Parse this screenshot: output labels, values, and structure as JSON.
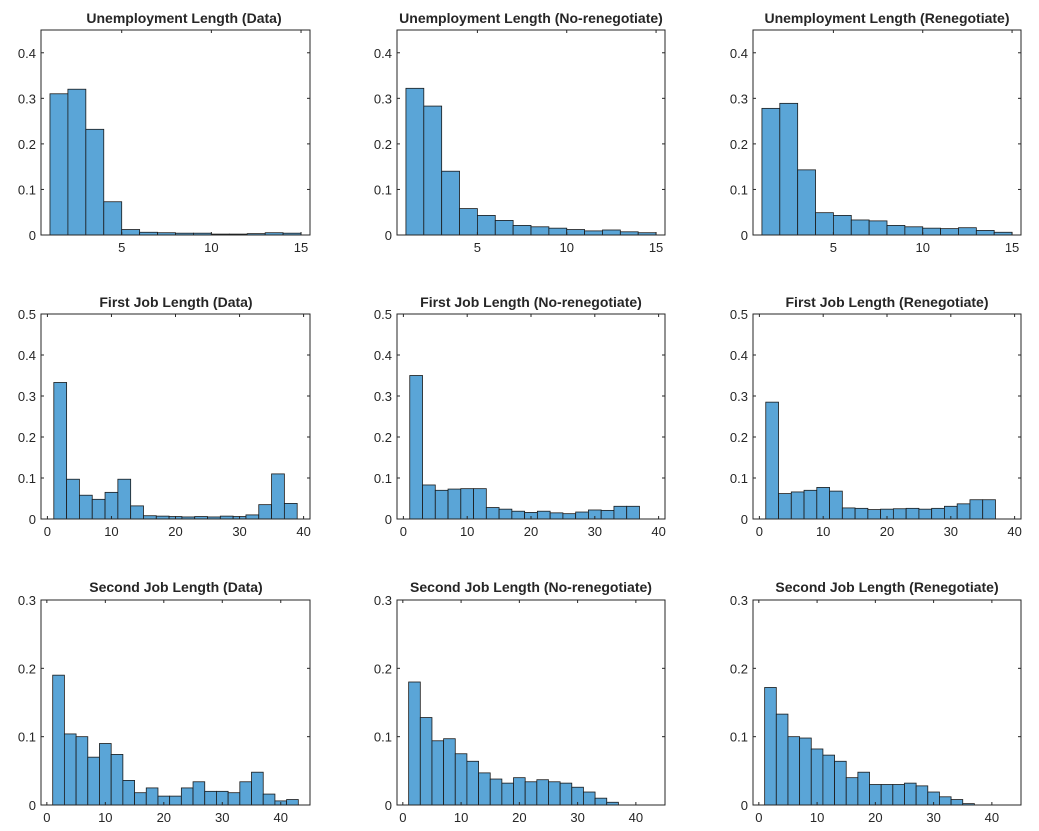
{
  "colors": {
    "bar_fill": "#5aa5d7",
    "bar_edge": "#1a1a1a",
    "axes": "#262626"
  },
  "chart_data": [
    {
      "type": "bar",
      "title": "Unemployment Length (Data)",
      "x": [
        1.5,
        2.5,
        3.5,
        4.5,
        5.5,
        6.5,
        7.5,
        8.5,
        9.5,
        10.5,
        11.5,
        12.5,
        13.5,
        14.5
      ],
      "values": [
        0.31,
        0.32,
        0.232,
        0.073,
        0.012,
        0.006,
        0.005,
        0.004,
        0.004,
        0.002,
        0.002,
        0.003,
        0.005,
        0.004
      ],
      "bin_width": 1,
      "xlim": [
        0.5,
        15.5
      ],
      "ylim": [
        0,
        0.45
      ],
      "xticks": [
        5,
        10,
        15
      ],
      "yticks": [
        0,
        0.1,
        0.2,
        0.3,
        0.4
      ],
      "xtick_labels": [
        "5",
        "10",
        "15"
      ],
      "ytick_labels": [
        "0",
        "0.1",
        "0.2",
        "0.3",
        "0.4"
      ]
    },
    {
      "type": "bar",
      "title": "Unemployment Length (No-renegotiate)",
      "x": [
        1.5,
        2.5,
        3.5,
        4.5,
        5.5,
        6.5,
        7.5,
        8.5,
        9.5,
        10.5,
        11.5,
        12.5,
        13.5,
        14.5
      ],
      "values": [
        0.322,
        0.283,
        0.14,
        0.058,
        0.043,
        0.032,
        0.021,
        0.018,
        0.015,
        0.012,
        0.009,
        0.011,
        0.007,
        0.005
      ],
      "bin_width": 1,
      "xlim": [
        0.5,
        15.5
      ],
      "ylim": [
        0,
        0.45
      ],
      "xticks": [
        5,
        10,
        15
      ],
      "yticks": [
        0,
        0.1,
        0.2,
        0.3,
        0.4
      ],
      "xtick_labels": [
        "5",
        "10",
        "15"
      ],
      "ytick_labels": [
        "0",
        "0.1",
        "0.2",
        "0.3",
        "0.4"
      ]
    },
    {
      "type": "bar",
      "title": "Unemployment Length (Renegotiate)",
      "x": [
        1.5,
        2.5,
        3.5,
        4.5,
        5.5,
        6.5,
        7.5,
        8.5,
        9.5,
        10.5,
        11.5,
        12.5,
        13.5,
        14.5
      ],
      "values": [
        0.278,
        0.289,
        0.143,
        0.049,
        0.043,
        0.033,
        0.031,
        0.021,
        0.018,
        0.015,
        0.014,
        0.016,
        0.01,
        0.006
      ],
      "bin_width": 1,
      "xlim": [
        0.5,
        15.5
      ],
      "ylim": [
        0,
        0.45
      ],
      "xticks": [
        5,
        10,
        15
      ],
      "yticks": [
        0,
        0.1,
        0.2,
        0.3,
        0.4
      ],
      "xtick_labels": [
        "5",
        "10",
        "15"
      ],
      "ytick_labels": [
        "0",
        "0.1",
        "0.2",
        "0.3",
        "0.4"
      ]
    },
    {
      "type": "bar",
      "title": "First Job Length (Data)",
      "x": [
        2,
        4,
        6,
        8,
        10,
        12,
        14,
        16,
        18,
        20,
        22,
        24,
        26,
        28,
        30,
        32,
        34,
        36,
        38
      ],
      "values": [
        0.333,
        0.097,
        0.058,
        0.048,
        0.065,
        0.097,
        0.032,
        0.008,
        0.007,
        0.006,
        0.005,
        0.006,
        0.005,
        0.007,
        0.006,
        0.01,
        0.035,
        0.11,
        0.038
      ],
      "bin_width": 2,
      "xlim": [
        -1,
        41
      ],
      "ylim": [
        0,
        0.5
      ],
      "xticks": [
        0,
        10,
        20,
        30,
        40
      ],
      "yticks": [
        0,
        0.1,
        0.2,
        0.3,
        0.4,
        0.5
      ],
      "xtick_labels": [
        "0",
        "10",
        "20",
        "30",
        "40"
      ],
      "ytick_labels": [
        "0",
        "0.1",
        "0.2",
        "0.3",
        "0.4",
        "0.5"
      ]
    },
    {
      "type": "bar",
      "title": "First Job Length (No-renegotiate)",
      "x": [
        2,
        4,
        6,
        8,
        10,
        12,
        14,
        16,
        18,
        20,
        22,
        24,
        26,
        28,
        30,
        32,
        34,
        36
      ],
      "values": [
        0.35,
        0.083,
        0.07,
        0.073,
        0.074,
        0.074,
        0.028,
        0.024,
        0.019,
        0.016,
        0.019,
        0.015,
        0.013,
        0.017,
        0.022,
        0.021,
        0.031,
        0.031
      ],
      "bin_width": 2,
      "xlim": [
        -1,
        41
      ],
      "ylim": [
        0,
        0.5
      ],
      "xticks": [
        0,
        10,
        20,
        30,
        40
      ],
      "yticks": [
        0,
        0.1,
        0.2,
        0.3,
        0.4,
        0.5
      ],
      "xtick_labels": [
        "0",
        "10",
        "20",
        "30",
        "40"
      ],
      "ytick_labels": [
        "0",
        "0.1",
        "0.2",
        "0.3",
        "0.4",
        "0.5"
      ]
    },
    {
      "type": "bar",
      "title": "First Job Length (Renegotiate)",
      "x": [
        2,
        4,
        6,
        8,
        10,
        12,
        14,
        16,
        18,
        20,
        22,
        24,
        26,
        28,
        30,
        32,
        34,
        36
      ],
      "values": [
        0.285,
        0.062,
        0.066,
        0.07,
        0.077,
        0.068,
        0.027,
        0.026,
        0.023,
        0.024,
        0.025,
        0.026,
        0.024,
        0.026,
        0.031,
        0.037,
        0.047,
        0.047
      ],
      "bin_width": 2,
      "xlim": [
        -1,
        41
      ],
      "ylim": [
        0,
        0.5
      ],
      "xticks": [
        0,
        10,
        20,
        30,
        40
      ],
      "yticks": [
        0,
        0.1,
        0.2,
        0.3,
        0.4,
        0.5
      ],
      "xtick_labels": [
        "0",
        "10",
        "20",
        "30",
        "40"
      ],
      "ytick_labels": [
        "0",
        "0.1",
        "0.2",
        "0.3",
        "0.4",
        "0.5"
      ]
    },
    {
      "type": "bar",
      "title": "Second Job Length (Data)",
      "x": [
        2,
        4,
        6,
        8,
        10,
        12,
        14,
        16,
        18,
        20,
        22,
        24,
        26,
        28,
        30,
        32,
        34,
        36,
        38,
        40,
        42
      ],
      "values": [
        0.19,
        0.104,
        0.1,
        0.07,
        0.09,
        0.074,
        0.036,
        0.018,
        0.025,
        0.013,
        0.013,
        0.025,
        0.034,
        0.02,
        0.02,
        0.018,
        0.034,
        0.048,
        0.016,
        0.006,
        0.008
      ],
      "bin_width": 2,
      "xlim": [
        -1,
        45
      ],
      "ylim": [
        0,
        0.3
      ],
      "xticks": [
        0,
        10,
        20,
        30,
        40
      ],
      "yticks": [
        0,
        0.1,
        0.2,
        0.3
      ],
      "xtick_labels": [
        "0",
        "10",
        "20",
        "30",
        "40"
      ],
      "ytick_labels": [
        "0",
        "0.1",
        "0.2",
        "0.3"
      ]
    },
    {
      "type": "bar",
      "title": "Second Job Length (No-renegotiate)",
      "x": [
        2,
        4,
        6,
        8,
        10,
        12,
        14,
        16,
        18,
        20,
        22,
        24,
        26,
        28,
        30,
        32,
        34,
        36,
        38,
        40,
        42
      ],
      "values": [
        0.18,
        0.128,
        0.094,
        0.097,
        0.075,
        0.064,
        0.047,
        0.038,
        0.032,
        0.04,
        0.034,
        0.037,
        0.034,
        0.032,
        0.026,
        0.019,
        0.01,
        0.004,
        0,
        0,
        0
      ],
      "bin_width": 2,
      "xlim": [
        -1,
        45
      ],
      "ylim": [
        0,
        0.3
      ],
      "xticks": [
        0,
        10,
        20,
        30,
        40
      ],
      "yticks": [
        0,
        0.1,
        0.2,
        0.3
      ],
      "xtick_labels": [
        "0",
        "10",
        "20",
        "30",
        "40"
      ],
      "ytick_labels": [
        "0",
        "0.1",
        "0.2",
        "0.3"
      ]
    },
    {
      "type": "bar",
      "title": "Second Job Length (Renegotiate)",
      "x": [
        2,
        4,
        6,
        8,
        10,
        12,
        14,
        16,
        18,
        20,
        22,
        24,
        26,
        28,
        30,
        32,
        34,
        36,
        38,
        40,
        42
      ],
      "values": [
        0.172,
        0.133,
        0.1,
        0.098,
        0.082,
        0.073,
        0.064,
        0.04,
        0.048,
        0.03,
        0.03,
        0.03,
        0.032,
        0.028,
        0.019,
        0.012,
        0.008,
        0.002,
        0,
        0,
        0
      ],
      "bin_width": 2,
      "xlim": [
        -1,
        45
      ],
      "ylim": [
        0,
        0.3
      ],
      "xticks": [
        0,
        10,
        20,
        30,
        40
      ],
      "yticks": [
        0,
        0.1,
        0.2,
        0.3
      ],
      "xtick_labels": [
        "0",
        "10",
        "20",
        "30",
        "40"
      ],
      "ytick_labels": [
        "0",
        "0.1",
        "0.2",
        "0.3"
      ]
    }
  ]
}
